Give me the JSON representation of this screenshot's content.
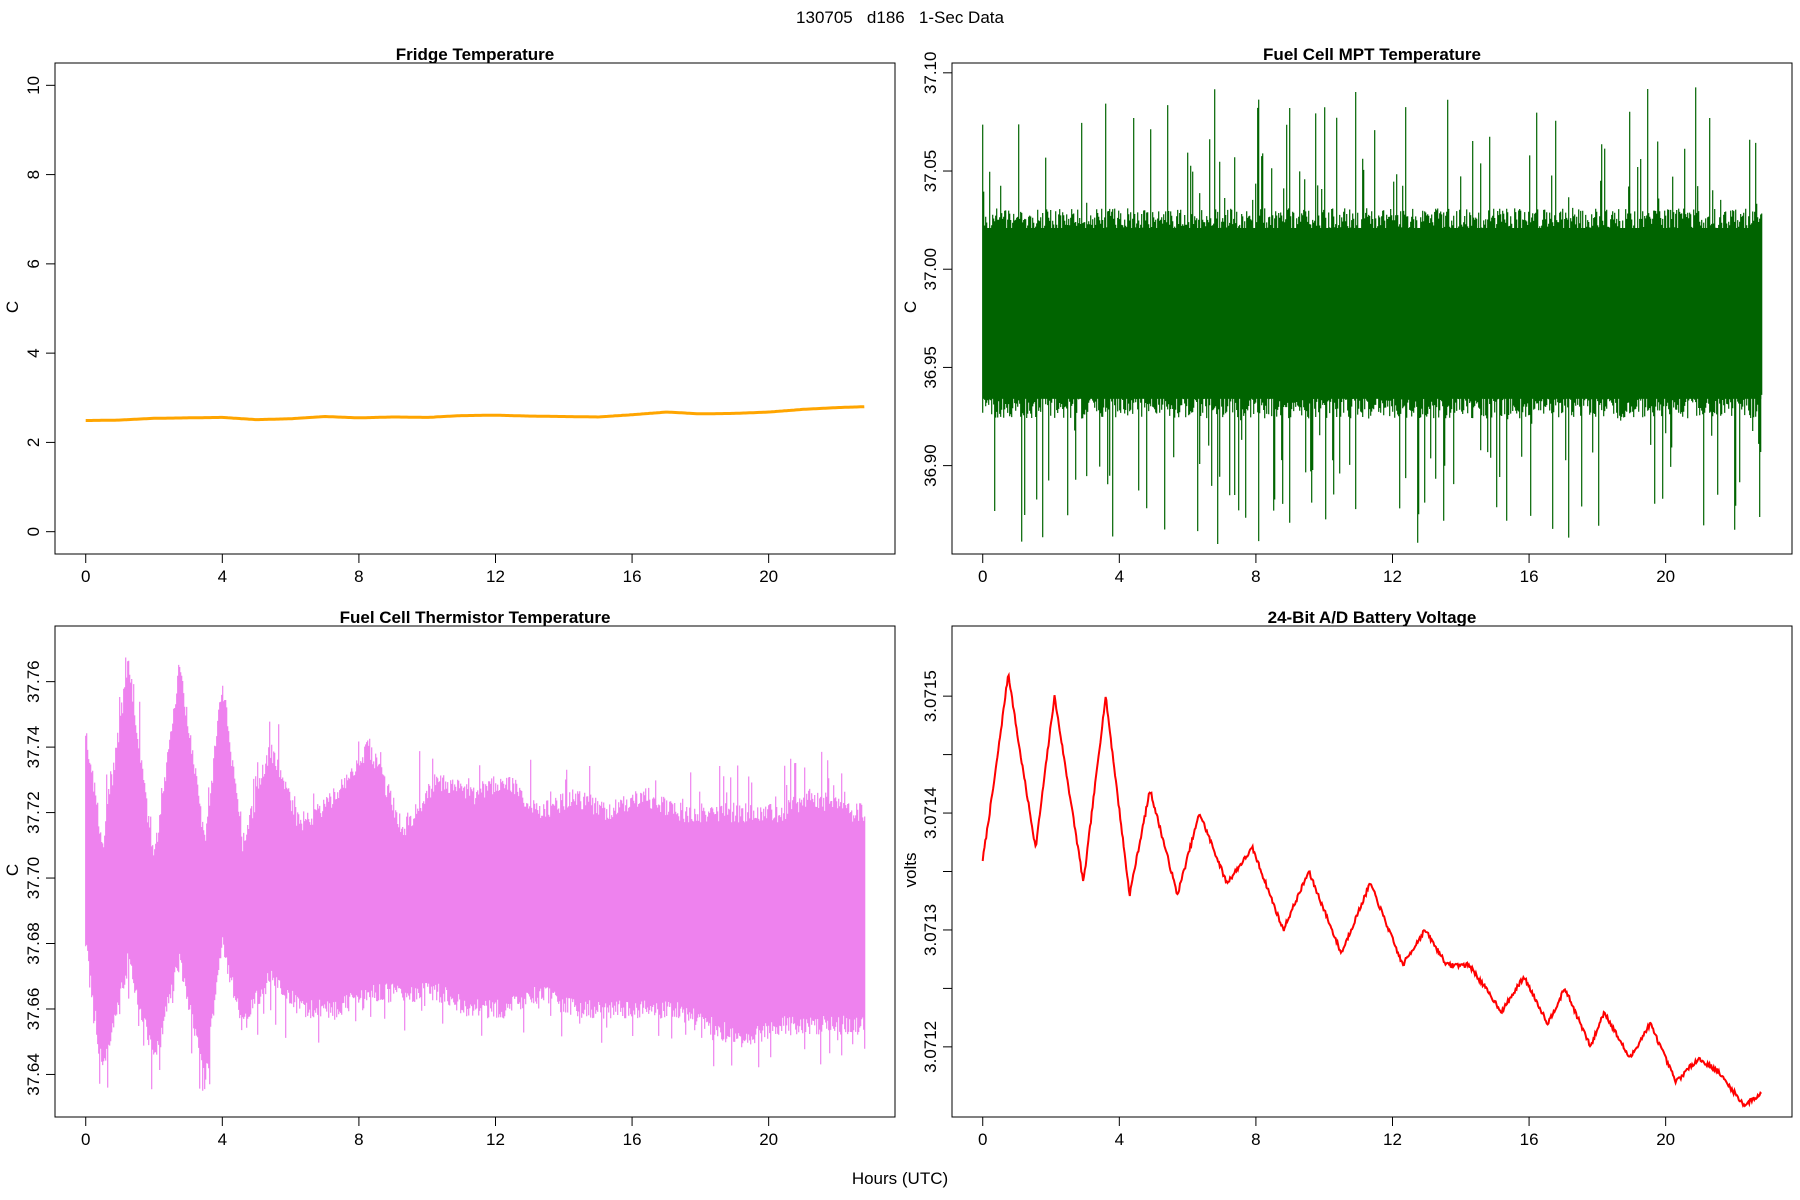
{
  "figure": {
    "title": "130705   d186   1-Sec Data",
    "xlabel": "Hours (UTC)"
  },
  "chart_data": [
    {
      "id": "fridge",
      "type": "line",
      "title": "Fridge Temperature",
      "ylabel": "C",
      "color": "#ffa500",
      "line_width": 3,
      "xlim": [
        -0.9,
        23.7
      ],
      "ylim": [
        -0.5,
        10.5
      ],
      "xticks": [
        0,
        4,
        8,
        12,
        16,
        20
      ],
      "yticks": [
        0,
        2,
        4,
        6,
        8,
        10
      ],
      "ytick_labels": [
        "0",
        "2",
        "4",
        "6",
        "8",
        "10"
      ],
      "grid": false,
      "x": [
        0,
        1,
        2,
        3,
        4,
        5,
        6,
        7,
        8,
        9,
        10,
        11,
        12,
        13,
        14,
        15,
        16,
        17,
        18,
        19,
        20,
        21,
        22,
        22.8
      ],
      "y": [
        2.49,
        2.5,
        2.54,
        2.55,
        2.56,
        2.51,
        2.53,
        2.58,
        2.55,
        2.57,
        2.56,
        2.6,
        2.61,
        2.59,
        2.58,
        2.57,
        2.62,
        2.68,
        2.64,
        2.65,
        2.68,
        2.74,
        2.78,
        2.8
      ]
    },
    {
      "id": "mpt",
      "type": "line",
      "title": "Fuel Cell MPT Temperature",
      "ylabel": "C",
      "color": "#006400",
      "xlim": [
        -0.9,
        23.7
      ],
      "ylim": [
        36.855,
        37.105
      ],
      "xticks": [
        0,
        4,
        8,
        12,
        16,
        20
      ],
      "yticks": [
        36.9,
        36.95,
        37.0,
        37.05,
        37.1
      ],
      "ytick_labels": [
        "36.90",
        "36.95",
        "37.00",
        "37.05",
        "37.10"
      ],
      "grid": false,
      "x_range": [
        0,
        22.8
      ],
      "center": 36.977,
      "band_low": 36.93,
      "band_high": 37.025,
      "min": 36.86,
      "max": 37.093
    },
    {
      "id": "thermistor",
      "type": "line",
      "title": "Fuel Cell Thermistor Temperature",
      "ylabel": "C",
      "color": "#ee82ee",
      "xlim": [
        -0.9,
        23.7
      ],
      "ylim": [
        37.627,
        37.777
      ],
      "xticks": [
        0,
        4,
        8,
        12,
        16,
        20
      ],
      "yticks": [
        37.64,
        37.66,
        37.68,
        37.7,
        37.72,
        37.74,
        37.76
      ],
      "ytick_labels": [
        "37.64",
        "37.66",
        "37.68",
        "37.70",
        "37.72",
        "37.74",
        "37.76"
      ],
      "grid": false,
      "x": [
        0,
        0.5,
        1.25,
        2.0,
        2.75,
        3.5,
        4.0,
        4.6,
        5.4,
        6.3,
        7.3,
        8.3,
        9.3,
        10.3,
        11.3,
        12.3,
        13.3,
        14.3,
        15.3,
        16.3,
        17.3,
        18.3,
        19.3,
        20.3,
        21.3,
        22.3,
        22.8
      ],
      "upper": [
        37.745,
        37.71,
        37.765,
        37.705,
        37.765,
        37.71,
        37.76,
        37.71,
        37.74,
        37.715,
        37.725,
        37.74,
        37.715,
        37.73,
        37.725,
        37.73,
        37.72,
        37.725,
        37.72,
        37.725,
        37.72,
        37.72,
        37.72,
        37.72,
        37.725,
        37.72,
        37.72
      ],
      "lower": [
        37.68,
        37.64,
        37.675,
        37.645,
        37.675,
        37.64,
        37.68,
        37.655,
        37.67,
        37.66,
        37.66,
        37.665,
        37.665,
        37.665,
        37.66,
        37.66,
        37.665,
        37.66,
        37.66,
        37.66,
        37.66,
        37.655,
        37.65,
        37.655,
        37.655,
        37.655,
        37.655
      ],
      "min": 37.635,
      "max": 37.772
    },
    {
      "id": "battery",
      "type": "line",
      "title": "24-Bit A/D Battery Voltage",
      "ylabel": "volts",
      "color": "#ff0000",
      "line_width": 2,
      "xlim": [
        -0.9,
        23.7
      ],
      "ylim": [
        3.07114,
        3.07156
      ],
      "xticks": [
        0,
        4,
        8,
        12,
        16,
        20
      ],
      "yticks": [
        3.0712,
        3.07125,
        3.0713,
        3.07135,
        3.0714,
        3.07145,
        3.0715
      ],
      "ytick_labels": [
        "3.0712",
        "",
        "3.0713",
        "",
        "3.0714",
        "",
        "3.0715"
      ],
      "grid": false,
      "x": [
        0,
        0.35,
        0.75,
        1.05,
        1.55,
        2.1,
        2.95,
        3.6,
        4.3,
        4.9,
        5.7,
        6.35,
        7.15,
        7.9,
        8.8,
        9.55,
        10.5,
        11.35,
        12.3,
        12.95,
        13.6,
        14.25,
        15.2,
        15.85,
        16.55,
        17.05,
        17.8,
        18.2,
        18.95,
        19.55,
        20.3,
        20.95,
        21.5,
        22.3,
        22.8
      ],
      "y": [
        3.07136,
        3.07143,
        3.07152,
        3.07146,
        3.07137,
        3.0715,
        3.07134,
        3.0715,
        3.07133,
        3.07142,
        3.07133,
        3.0714,
        3.07134,
        3.07137,
        3.0713,
        3.07135,
        3.07128,
        3.07134,
        3.07127,
        3.0713,
        3.07127,
        3.07127,
        3.07123,
        3.07126,
        3.07122,
        3.07125,
        3.0712,
        3.07123,
        3.07119,
        3.07122,
        3.07117,
        3.07119,
        3.07118,
        3.07115,
        3.07116
      ]
    }
  ]
}
